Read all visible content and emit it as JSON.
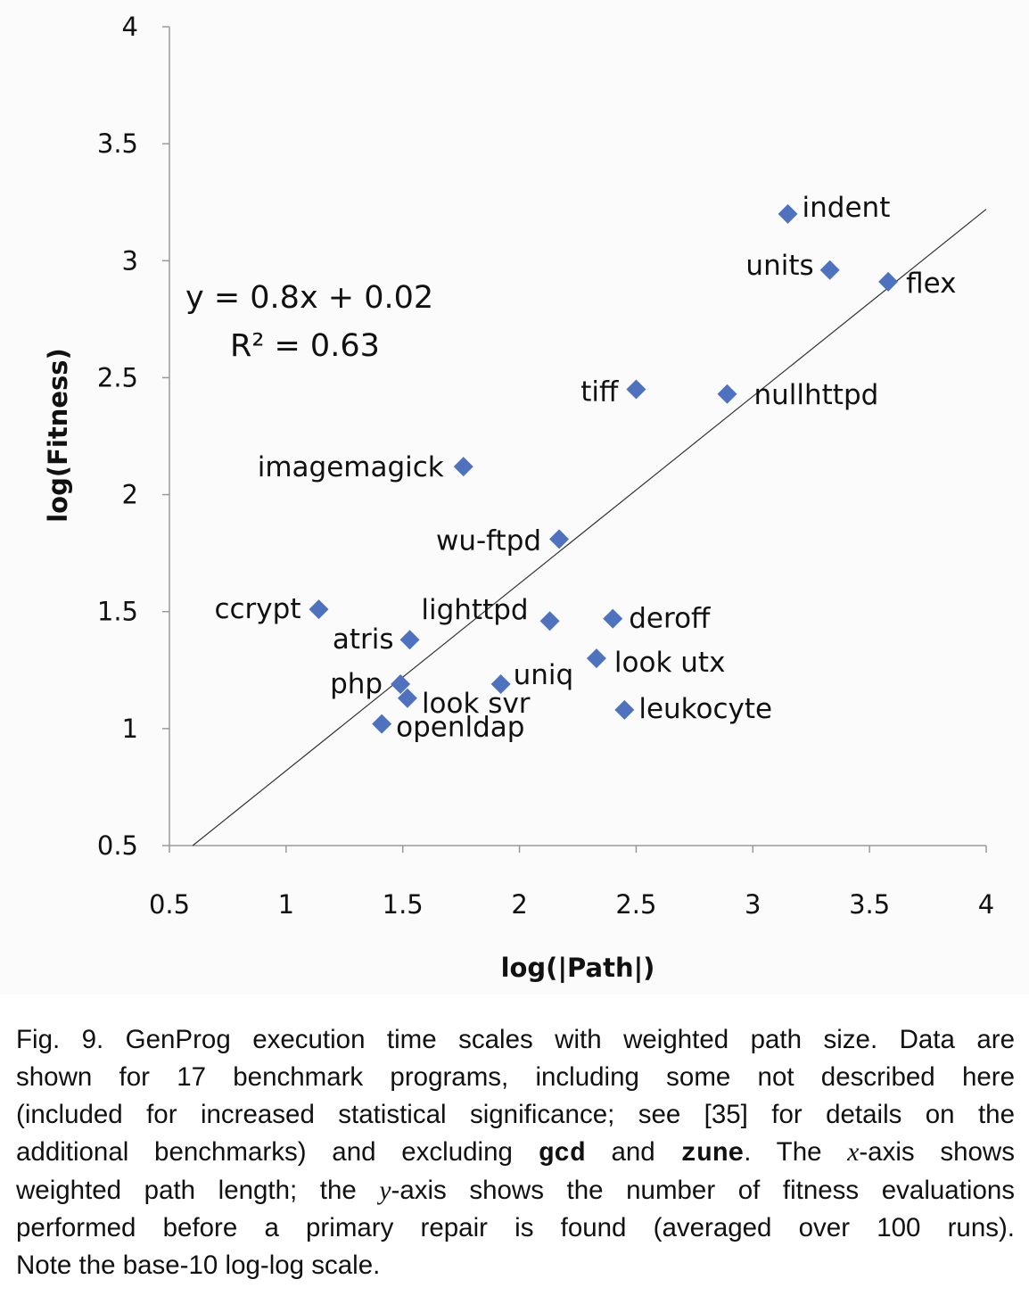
{
  "chart_data": {
    "type": "scatter",
    "xlabel": "log(|Path|)",
    "ylabel": "log(Fitness)",
    "xlim": [
      0.5,
      4
    ],
    "ylim": [
      0.5,
      4
    ],
    "xticks": [
      "0.5",
      "1",
      "1.5",
      "2",
      "2.5",
      "3",
      "3.5",
      "4"
    ],
    "yticks": [
      "0.5",
      "1",
      "1.5",
      "2",
      "2.5",
      "3",
      "3.5",
      "4"
    ],
    "grid": false,
    "marker_color": "#4f72bf",
    "points": [
      {
        "label": "indent",
        "x": 3.15,
        "y": 3.2
      },
      {
        "label": "units",
        "x": 3.33,
        "y": 2.96
      },
      {
        "label": "flex",
        "x": 3.58,
        "y": 2.91
      },
      {
        "label": "tiff",
        "x": 2.5,
        "y": 2.45
      },
      {
        "label": "nullhttpd",
        "x": 2.89,
        "y": 2.43
      },
      {
        "label": "imagemagick",
        "x": 1.76,
        "y": 2.12
      },
      {
        "label": "wu-ftpd",
        "x": 2.17,
        "y": 1.81
      },
      {
        "label": "ccrypt",
        "x": 1.14,
        "y": 1.51
      },
      {
        "label": "atris",
        "x": 1.53,
        "y": 1.38
      },
      {
        "label": "lighttpd",
        "x": 2.13,
        "y": 1.46
      },
      {
        "label": "deroff",
        "x": 2.4,
        "y": 1.47
      },
      {
        "label": "look utx",
        "x": 2.33,
        "y": 1.3
      },
      {
        "label": "php",
        "x": 1.49,
        "y": 1.19
      },
      {
        "label": "look svr",
        "x": 1.52,
        "y": 1.13
      },
      {
        "label": "openldap",
        "x": 1.41,
        "y": 1.02
      },
      {
        "label": "uniq",
        "x": 1.92,
        "y": 1.19
      },
      {
        "label": "leukocyte",
        "x": 2.45,
        "y": 1.08
      }
    ],
    "trendline": {
      "slope": 0.8,
      "intercept": 0.02,
      "x_range": [
        0.6,
        4
      ]
    },
    "annotations": [
      "y = 0.8x + 0.02",
      "R² = 0.63"
    ]
  },
  "caption": {
    "lines": [
      "Fig. 9. GenProg execution time scales with weighted path size. Data are",
      "shown for 17 benchmark programs, including some not described here",
      "(included for increased statistical significance; see [35] for details on the"
    ],
    "line4": {
      "a": "additional benchmarks) and excluding ",
      "gcd": "gcd",
      "b": " and ",
      "zune": "zune",
      "c": ". The ",
      "x": "x",
      "d": "-axis shows"
    },
    "line5": {
      "a": "weighted path length; the ",
      "y": "y",
      "b": "-axis shows the number of fitness evaluations"
    },
    "line6": "performed before a primary repair is found (averaged over 100 runs).",
    "line7": "Note the base-10 log-log scale."
  }
}
